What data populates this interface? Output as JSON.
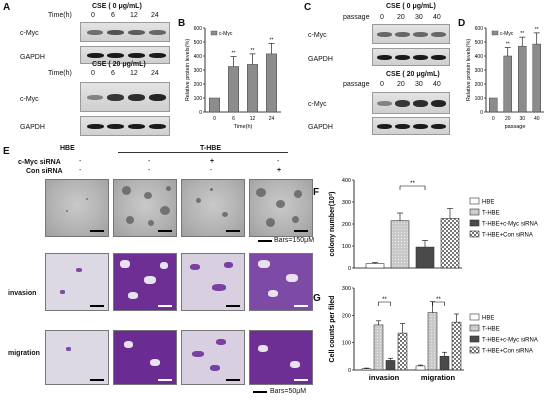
{
  "panels": {
    "A": {
      "label": "A",
      "top_blot": {
        "title": "CSE ( 0 μg/mL)",
        "time_label": "Time(h)",
        "times": [
          "0",
          "6",
          "12",
          "24"
        ],
        "rows": [
          "c-Myc",
          "GAPDH"
        ]
      },
      "bottom_blot": {
        "title": "CSE ( 20 μg/mL)",
        "time_label": "Time(h)",
        "times": [
          "0",
          "6",
          "12",
          "24"
        ],
        "rows": [
          "c-Myc",
          "GAPDH"
        ]
      }
    },
    "B": {
      "label": "B"
    },
    "C": {
      "label": "C",
      "top_blot": {
        "title": "CSE ( 0 μg/mL)",
        "time_label": "passage",
        "times": [
          "0",
          "20",
          "30",
          "40"
        ],
        "rows": [
          "c-Myc",
          "GAPDH"
        ]
      },
      "bottom_blot": {
        "title": "CSE ( 20 μg/mL)",
        "time_label": "passage",
        "times": [
          "0",
          "20",
          "30",
          "40"
        ],
        "rows": [
          "c-Myc",
          "GAPDH"
        ]
      }
    },
    "D": {
      "label": "D"
    },
    "E": {
      "label": "E",
      "groups": {
        "hbe": "HBE",
        "thbe": "T-HBE"
      },
      "rows": [
        {
          "label": "c-Myc siRNA",
          "marks": [
            "-",
            "-",
            "+",
            "-"
          ]
        },
        {
          "label": "Con siRNA",
          "marks": [
            "-",
            "-",
            "-",
            "+"
          ]
        }
      ],
      "bars_top": "Bars=150μM",
      "bars_bottom": "Bars=50μM",
      "invasion": "invasion",
      "migration": "migration"
    },
    "F": {
      "label": "F"
    },
    "G": {
      "label": "G"
    }
  },
  "chart_data": [
    {
      "id": "B",
      "type": "bar",
      "categories": [
        "0",
        "6",
        "12",
        "24"
      ],
      "values": [
        100,
        325,
        340,
        415
      ],
      "errors": [
        0,
        70,
        75,
        75
      ],
      "sig": [
        "",
        "**",
        "**",
        "**"
      ],
      "ylabel": "Relative protein levels(%)",
      "xlabel": "Time(h)",
      "ylim": [
        0,
        600
      ],
      "yticks": [
        0,
        100,
        200,
        300,
        400,
        500,
        600
      ],
      "legend": [
        "c-Myc"
      ],
      "legend_position": "top-left"
    },
    {
      "id": "D",
      "type": "bar",
      "categories": [
        "0",
        "20",
        "30",
        "40"
      ],
      "values": [
        100,
        400,
        470,
        485
      ],
      "errors": [
        0,
        60,
        65,
        80
      ],
      "sig": [
        "",
        "**",
        "**",
        "**"
      ],
      "ylabel": "Relative protein levels(%)",
      "xlabel": "passage",
      "ylim": [
        0,
        600
      ],
      "yticks": [
        0,
        100,
        200,
        300,
        400,
        500,
        600
      ],
      "legend": [
        "c-Myc"
      ],
      "legend_position": "top-left"
    },
    {
      "id": "F",
      "type": "bar",
      "categories": [
        "HBE",
        "T-HBE",
        "T-HBE+c-Myc siRNA",
        "T-HBE+Con siRNA"
      ],
      "values": [
        20,
        215,
        95,
        225
      ],
      "errors": [
        5,
        35,
        30,
        45
      ],
      "ylabel": "colony number(10²)",
      "ylim": [
        0,
        400
      ],
      "yticks": [
        0,
        100,
        200,
        300,
        400
      ],
      "sig_bracket": {
        "from": 1,
        "to": 2,
        "label": "**"
      },
      "legend": [
        "HBE",
        "T-HBE",
        "T-HBE+c-Myc siRNA",
        "T-HBE+Con siRNA"
      ],
      "legend_position": "right"
    },
    {
      "id": "G",
      "type": "bar",
      "categories": [
        "invasion",
        "migration"
      ],
      "series": [
        {
          "name": "HBE",
          "values": [
            5,
            15
          ],
          "errors": [
            2,
            3
          ]
        },
        {
          "name": "T-HBE",
          "values": [
            165,
            210
          ],
          "errors": [
            15,
            40
          ]
        },
        {
          "name": "T-HBE+c-Myc siRNA",
          "values": [
            35,
            50
          ],
          "errors": [
            8,
            15
          ]
        },
        {
          "name": "T-HBE+Con siRNA",
          "values": [
            135,
            175
          ],
          "errors": [
            35,
            30
          ]
        }
      ],
      "ylabel": "Cell counts per filed",
      "ylim": [
        0,
        300
      ],
      "yticks": [
        0,
        100,
        200,
        300
      ],
      "sig_brackets": [
        {
          "group": 0,
          "from": 1,
          "to": 2,
          "label": "**"
        },
        {
          "group": 1,
          "from": 1,
          "to": 2,
          "label": "**"
        }
      ],
      "legend": [
        "HBE",
        "T-HBE",
        "T-HBE+c-Myc siRNA",
        "T-HBE+Con siRNA"
      ],
      "legend_position": "right"
    }
  ]
}
